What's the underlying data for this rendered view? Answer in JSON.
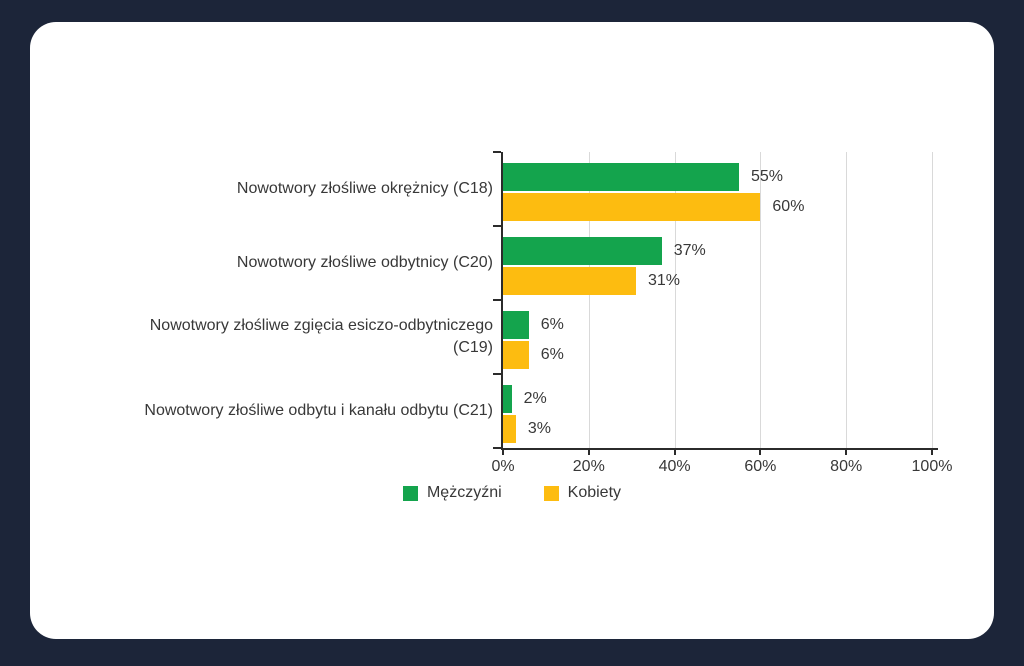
{
  "page": {
    "background_color": "#1C2539",
    "card_background_color": "#FFFFFF"
  },
  "chart_data": {
    "type": "bar",
    "orientation": "horizontal",
    "title": "",
    "categories": [
      "Nowotwory złośliwe okrężnicy (C18)",
      "Nowotwory złośliwe odbytnicy (C20)",
      "Nowotwory złośliwe zgięcia esiczo-odbytniczego\n(C19)",
      "Nowotwory złośliwe odbytu i kanału odbytu (C21)"
    ],
    "series": [
      {
        "name": "Mężczyźni",
        "color": "#14A44D",
        "values": [
          55,
          37,
          6,
          2
        ]
      },
      {
        "name": "Kobiety",
        "color": "#FDBC10",
        "values": [
          60,
          31,
          6,
          3
        ]
      }
    ],
    "data_label_format": "{value}%",
    "data_labels": [
      [
        "55%",
        "37%",
        "6%",
        "2%"
      ],
      [
        "60%",
        "31%",
        "6%",
        "3%"
      ]
    ],
    "x_ticks": [
      "0%",
      "20%",
      "40%",
      "60%",
      "80%",
      "100%"
    ],
    "xlim": [
      0,
      100
    ],
    "xlabel": "",
    "ylabel": "",
    "grid": true,
    "gridline_color": "#D9D9D9",
    "axis_color": "#2B2B2B",
    "text_color": "#383838",
    "legend_position": "bottom"
  }
}
